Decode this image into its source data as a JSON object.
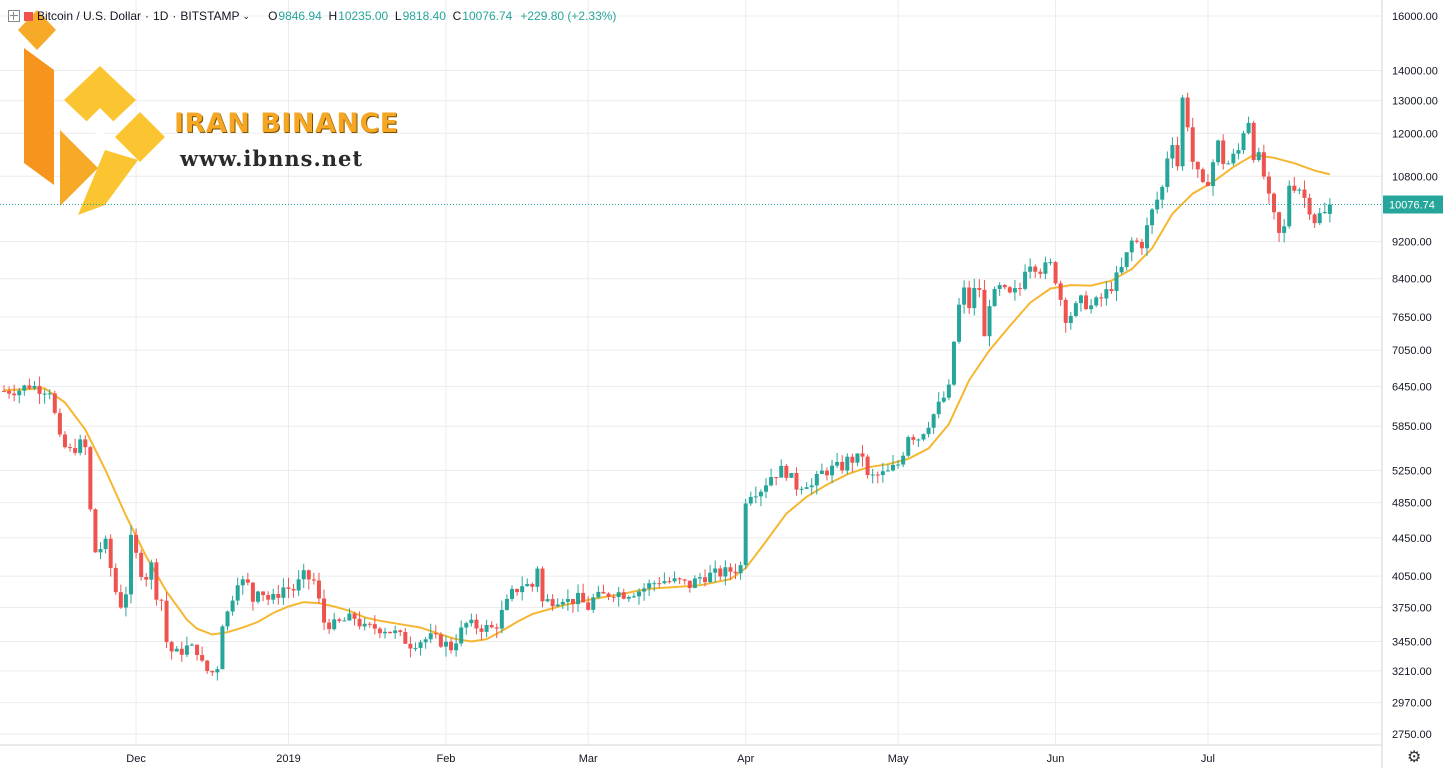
{
  "header": {
    "symbol": "Bitcoin / U.S. Dollar",
    "interval": "1D",
    "exchange": "BITSTAMP",
    "open_label": "O",
    "open": "9846.94",
    "high_label": "H",
    "high": "10235.00",
    "low_label": "L",
    "low": "9818.40",
    "close_label": "C",
    "close": "10076.74",
    "change": "+229.80 (+2.33%)"
  },
  "watermark": {
    "brand": "IRAN BINANCE",
    "url": "www.ibnns.net"
  },
  "colors": {
    "up": "#26a69a",
    "down": "#ef5350",
    "ma": "#f5b731",
    "grid": "#ececec",
    "price_line": "#26a69a",
    "logo": "#f5a623"
  },
  "icons": [
    "expand-icon",
    "flag-icon",
    "chevron-down-icon",
    "settings-gear-icon"
  ],
  "chart_data": {
    "type": "candlestick",
    "y_scale": "log",
    "y_ticks": [
      16000,
      14000,
      13000,
      12000,
      10800,
      9200,
      8400,
      7650,
      7050,
      6450,
      5850,
      5250,
      4850,
      4450,
      4050,
      3750,
      3450,
      3210,
      2970,
      2750
    ],
    "y_tick_labels": [
      "16000.00",
      "14000.00",
      "13000.00",
      "12000.00",
      "10800.00",
      "9200.00",
      "8400.00",
      "7650.00",
      "7050.00",
      "6450.00",
      "5850.00",
      "5250.00",
      "4850.00",
      "4450.00",
      "4050.00",
      "3750.00",
      "3450.00",
      "3210.00",
      "2970.00",
      "2750.00"
    ],
    "x_ticks": [
      {
        "label": "Dec",
        "day": 26
      },
      {
        "label": "2019",
        "day": 56
      },
      {
        "label": "Feb",
        "day": 87
      },
      {
        "label": "Mar",
        "day": 115
      },
      {
        "label": "Apr",
        "day": 146
      },
      {
        "label": "May",
        "day": 176
      },
      {
        "label": "Jun",
        "day": 207
      },
      {
        "label": "Jul",
        "day": 237
      }
    ],
    "last_price": 10076.74,
    "last_price_label": "10076.74",
    "series": [
      {
        "name": "price",
        "points": [
          [
            0,
            6380
          ],
          [
            3,
            6400
          ],
          [
            5,
            6470
          ],
          [
            7,
            6420
          ],
          [
            9,
            6400
          ],
          [
            11,
            5650
          ],
          [
            12,
            5550
          ],
          [
            13,
            5500
          ],
          [
            15,
            5600
          ],
          [
            16,
            5540
          ],
          [
            17,
            4750
          ],
          [
            18,
            4300
          ],
          [
            20,
            4380
          ],
          [
            22,
            3900
          ],
          [
            23,
            3780
          ],
          [
            24,
            3900
          ],
          [
            25,
            4420
          ],
          [
            27,
            4100
          ],
          [
            28,
            4050
          ],
          [
            29,
            4160
          ],
          [
            30,
            3880
          ],
          [
            31,
            3820
          ],
          [
            32,
            3450
          ],
          [
            33,
            3370
          ],
          [
            34,
            3350
          ],
          [
            36,
            3400
          ],
          [
            38,
            3380
          ],
          [
            39,
            3260
          ],
          [
            40,
            3210
          ],
          [
            41,
            3200
          ],
          [
            42,
            3250
          ],
          [
            43,
            3620
          ],
          [
            44,
            3700
          ],
          [
            45,
            3860
          ],
          [
            46,
            4020
          ],
          [
            48,
            3960
          ],
          [
            49,
            3820
          ],
          [
            50,
            3950
          ],
          [
            52,
            3830
          ],
          [
            53,
            3830
          ],
          [
            55,
            3940
          ],
          [
            57,
            3920
          ],
          [
            59,
            4050
          ],
          [
            61,
            4000
          ],
          [
            63,
            3620
          ],
          [
            65,
            3590
          ],
          [
            67,
            3630
          ],
          [
            69,
            3660
          ],
          [
            71,
            3560
          ],
          [
            73,
            3570
          ],
          [
            75,
            3560
          ],
          [
            77,
            3520
          ],
          [
            79,
            3460
          ],
          [
            80,
            3430
          ],
          [
            82,
            3460
          ],
          [
            84,
            3480
          ],
          [
            86,
            3450
          ],
          [
            88,
            3400
          ],
          [
            90,
            3540
          ],
          [
            91,
            3600
          ],
          [
            93,
            3580
          ],
          [
            96,
            3560
          ],
          [
            97,
            3600
          ],
          [
            98,
            3700
          ],
          [
            100,
            3880
          ],
          [
            102,
            3970
          ],
          [
            104,
            3950
          ],
          [
            105,
            4150
          ],
          [
            106,
            3800
          ],
          [
            108,
            3820
          ],
          [
            110,
            3850
          ],
          [
            111,
            3810
          ],
          [
            113,
            3830
          ],
          [
            115,
            3750
          ],
          [
            116,
            3830
          ],
          [
            118,
            3860
          ],
          [
            120,
            3900
          ],
          [
            122,
            3880
          ],
          [
            125,
            3910
          ],
          [
            127,
            3960
          ],
          [
            129,
            4010
          ],
          [
            131,
            4000
          ],
          [
            133,
            3990
          ],
          [
            135,
            3960
          ],
          [
            137,
            4040
          ],
          [
            139,
            4060
          ],
          [
            142,
            4090
          ],
          [
            144,
            4120
          ],
          [
            145,
            4150
          ],
          [
            146,
            4900
          ],
          [
            147,
            4980
          ],
          [
            149,
            5020
          ],
          [
            151,
            5180
          ],
          [
            153,
            5250
          ],
          [
            154,
            5230
          ],
          [
            156,
            5050
          ],
          [
            158,
            5100
          ],
          [
            159,
            5050
          ],
          [
            161,
            5220
          ],
          [
            163,
            5270
          ],
          [
            165,
            5300
          ],
          [
            166,
            5380
          ],
          [
            168,
            5400
          ],
          [
            169,
            5460
          ],
          [
            170,
            5150
          ],
          [
            172,
            5180
          ],
          [
            174,
            5220
          ],
          [
            176,
            5330
          ],
          [
            177,
            5500
          ],
          [
            178,
            5740
          ],
          [
            180,
            5690
          ],
          [
            182,
            5900
          ],
          [
            184,
            6150
          ],
          [
            186,
            6400
          ],
          [
            187,
            7200
          ],
          [
            188,
            7850
          ],
          [
            189,
            8150
          ],
          [
            190,
            7850
          ],
          [
            191,
            8150
          ],
          [
            192,
            8200
          ],
          [
            193,
            7250
          ],
          [
            194,
            7950
          ],
          [
            196,
            8200
          ],
          [
            198,
            8050
          ],
          [
            200,
            8200
          ],
          [
            201,
            8650
          ],
          [
            202,
            8750
          ],
          [
            204,
            8600
          ],
          [
            206,
            8680
          ],
          [
            207,
            8400
          ],
          [
            208,
            8000
          ],
          [
            209,
            7650
          ],
          [
            210,
            7700
          ],
          [
            212,
            7950
          ],
          [
            214,
            7850
          ],
          [
            216,
            8000
          ],
          [
            218,
            8250
          ],
          [
            220,
            8600
          ],
          [
            222,
            9200
          ],
          [
            224,
            9150
          ],
          [
            226,
            9900
          ],
          [
            228,
            10500
          ],
          [
            229,
            11350
          ],
          [
            230,
            11800
          ],
          [
            231,
            11100
          ],
          [
            232,
            13050
          ],
          [
            233,
            12300
          ],
          [
            234,
            11200
          ],
          [
            236,
            10500
          ],
          [
            237,
            10700
          ],
          [
            239,
            11700
          ],
          [
            240,
            11200
          ],
          [
            241,
            11150
          ],
          [
            243,
            11500
          ],
          [
            244,
            12100
          ],
          [
            245,
            12400
          ],
          [
            246,
            11400
          ],
          [
            247,
            11300
          ],
          [
            248,
            10800
          ],
          [
            249,
            10200
          ],
          [
            251,
            9350
          ],
          [
            252,
            9500
          ],
          [
            253,
            10600
          ],
          [
            255,
            10500
          ],
          [
            257,
            9980
          ],
          [
            258,
            9700
          ],
          [
            259,
            9820
          ],
          [
            260,
            9850
          ],
          [
            261,
            10076.74
          ]
        ]
      },
      {
        "name": "moving-average",
        "points": [
          [
            0,
            6390
          ],
          [
            8,
            6420
          ],
          [
            12,
            6200
          ],
          [
            16,
            5800
          ],
          [
            20,
            5250
          ],
          [
            24,
            4700
          ],
          [
            28,
            4250
          ],
          [
            32,
            3900
          ],
          [
            36,
            3640
          ],
          [
            38,
            3560
          ],
          [
            41,
            3510
          ],
          [
            44,
            3530
          ],
          [
            47,
            3570
          ],
          [
            50,
            3620
          ],
          [
            53,
            3700
          ],
          [
            56,
            3760
          ],
          [
            59,
            3800
          ],
          [
            62,
            3790
          ],
          [
            65,
            3760
          ],
          [
            68,
            3720
          ],
          [
            71,
            3660
          ],
          [
            74,
            3630
          ],
          [
            78,
            3600
          ],
          [
            82,
            3570
          ],
          [
            86,
            3510
          ],
          [
            89,
            3470
          ],
          [
            92,
            3450
          ],
          [
            95,
            3470
          ],
          [
            98,
            3540
          ],
          [
            101,
            3620
          ],
          [
            104,
            3690
          ],
          [
            107,
            3730
          ],
          [
            110,
            3770
          ],
          [
            113,
            3800
          ],
          [
            116,
            3830
          ],
          [
            119,
            3855
          ],
          [
            122,
            3880
          ],
          [
            125,
            3910
          ],
          [
            128,
            3930
          ],
          [
            131,
            3940
          ],
          [
            134,
            3950
          ],
          [
            137,
            3960
          ],
          [
            140,
            3990
          ],
          [
            143,
            4020
          ],
          [
            146,
            4130
          ],
          [
            150,
            4410
          ],
          [
            154,
            4720
          ],
          [
            158,
            4920
          ],
          [
            162,
            5070
          ],
          [
            166,
            5200
          ],
          [
            170,
            5290
          ],
          [
            174,
            5330
          ],
          [
            178,
            5400
          ],
          [
            182,
            5540
          ],
          [
            186,
            5880
          ],
          [
            190,
            6550
          ],
          [
            194,
            7050
          ],
          [
            198,
            7480
          ],
          [
            202,
            7920
          ],
          [
            206,
            8200
          ],
          [
            210,
            8270
          ],
          [
            214,
            8260
          ],
          [
            218,
            8360
          ],
          [
            222,
            8600
          ],
          [
            226,
            9050
          ],
          [
            230,
            9850
          ],
          [
            234,
            10350
          ],
          [
            238,
            10650
          ],
          [
            242,
            11050
          ],
          [
            246,
            11380
          ],
          [
            250,
            11300
          ],
          [
            254,
            11150
          ],
          [
            258,
            10950
          ],
          [
            261,
            10850
          ]
        ]
      }
    ]
  }
}
